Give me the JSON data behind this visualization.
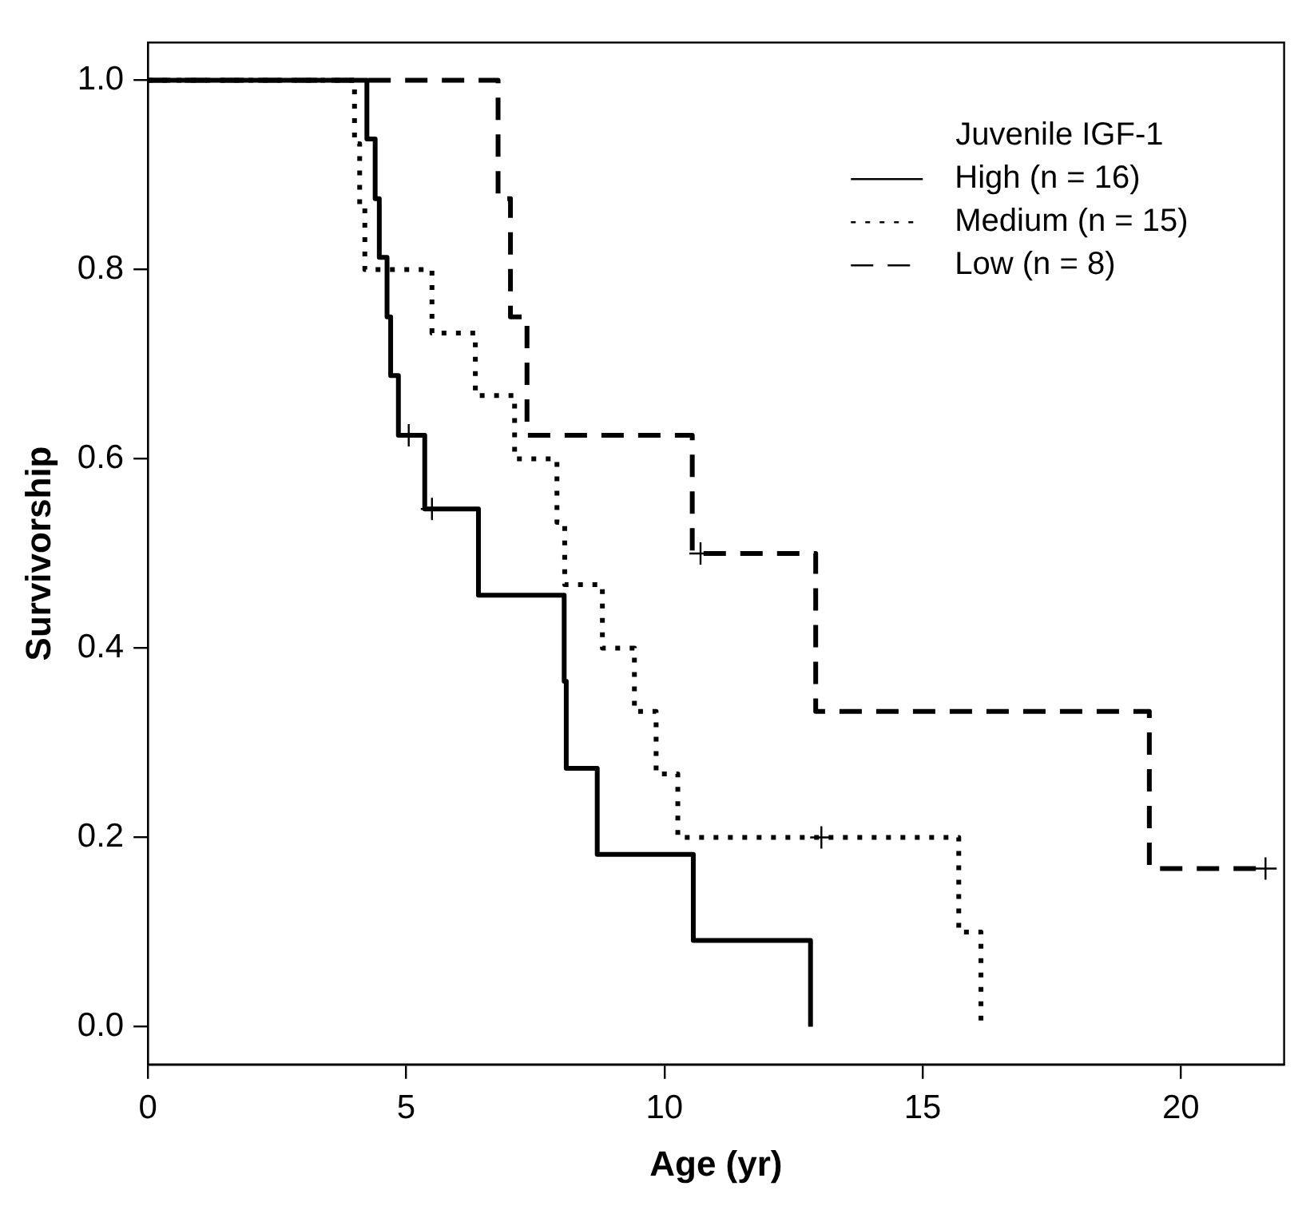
{
  "chart_data": {
    "type": "step",
    "xlabel": "Age (yr)",
    "ylabel": "Survivorship",
    "legend_title": "Juvenile IGF-1",
    "legend": "top right",
    "grid": false,
    "xlim": [
      0,
      22
    ],
    "xticks": [
      0,
      5,
      10,
      15,
      20
    ],
    "ylim": [
      -0.04,
      1.04
    ],
    "yticks": [
      {
        "value": 0,
        "label": "0.0"
      },
      {
        "value": 0.2,
        "label": "0.2"
      },
      {
        "value": 0.4,
        "label": "0.4"
      },
      {
        "value": 0.6,
        "label": "0.6"
      },
      {
        "value": 0.8,
        "label": "0.8"
      },
      {
        "value": 1,
        "label": "1.0"
      }
    ],
    "series": [
      {
        "name": "High (n = 16)",
        "color": "#000000",
        "line_style": "solid",
        "x": [
          0,
          4.24,
          4.4,
          4.48,
          4.63,
          4.7,
          4.85,
          5.36,
          6.4,
          8.06,
          8.1,
          8.7,
          10.56,
          12.83
        ],
        "values": [
          1,
          0.938,
          0.875,
          0.813,
          0.75,
          0.688,
          0.625,
          0.547,
          0.456,
          0.365,
          0.273,
          0.182,
          0.091,
          0
        ]
      },
      {
        "name": "Medium (n = 15)",
        "color": "#000000",
        "line_style": "dotted",
        "x": [
          0,
          4.0,
          4.1,
          4.2,
          5.5,
          6.34,
          7.1,
          7.92,
          8.07,
          8.8,
          9.42,
          9.84,
          10.26,
          15.7,
          16.13
        ],
        "values": [
          1,
          0.933,
          0.867,
          0.8,
          0.733,
          0.667,
          0.6,
          0.533,
          0.467,
          0.4,
          0.333,
          0.267,
          0.2,
          0.1,
          0
        ]
      },
      {
        "name": "Low (n = 8)",
        "color": "#000000",
        "line_style": "dashed",
        "x": [
          0,
          6.78,
          7.02,
          7.34,
          10.54,
          12.93,
          19.39,
          21.64
        ],
        "values": [
          1,
          0.875,
          0.75,
          0.625,
          0.5,
          0.333,
          0.167,
          0.167
        ]
      },
      {
        "type": "scatter",
        "color": "#000000",
        "marker": "cross",
        "x": [
          5.05,
          5.5
        ],
        "values": [
          0.625,
          0.547
        ]
      },
      {
        "type": "scatter",
        "color": "#000000",
        "marker": "cross",
        "x": [
          13.04
        ],
        "values": [
          0.2
        ]
      },
      {
        "type": "scatter",
        "color": "#000000",
        "marker": "cross",
        "x": [
          10.7,
          21.64
        ],
        "values": [
          0.5,
          0.167
        ]
      }
    ]
  }
}
